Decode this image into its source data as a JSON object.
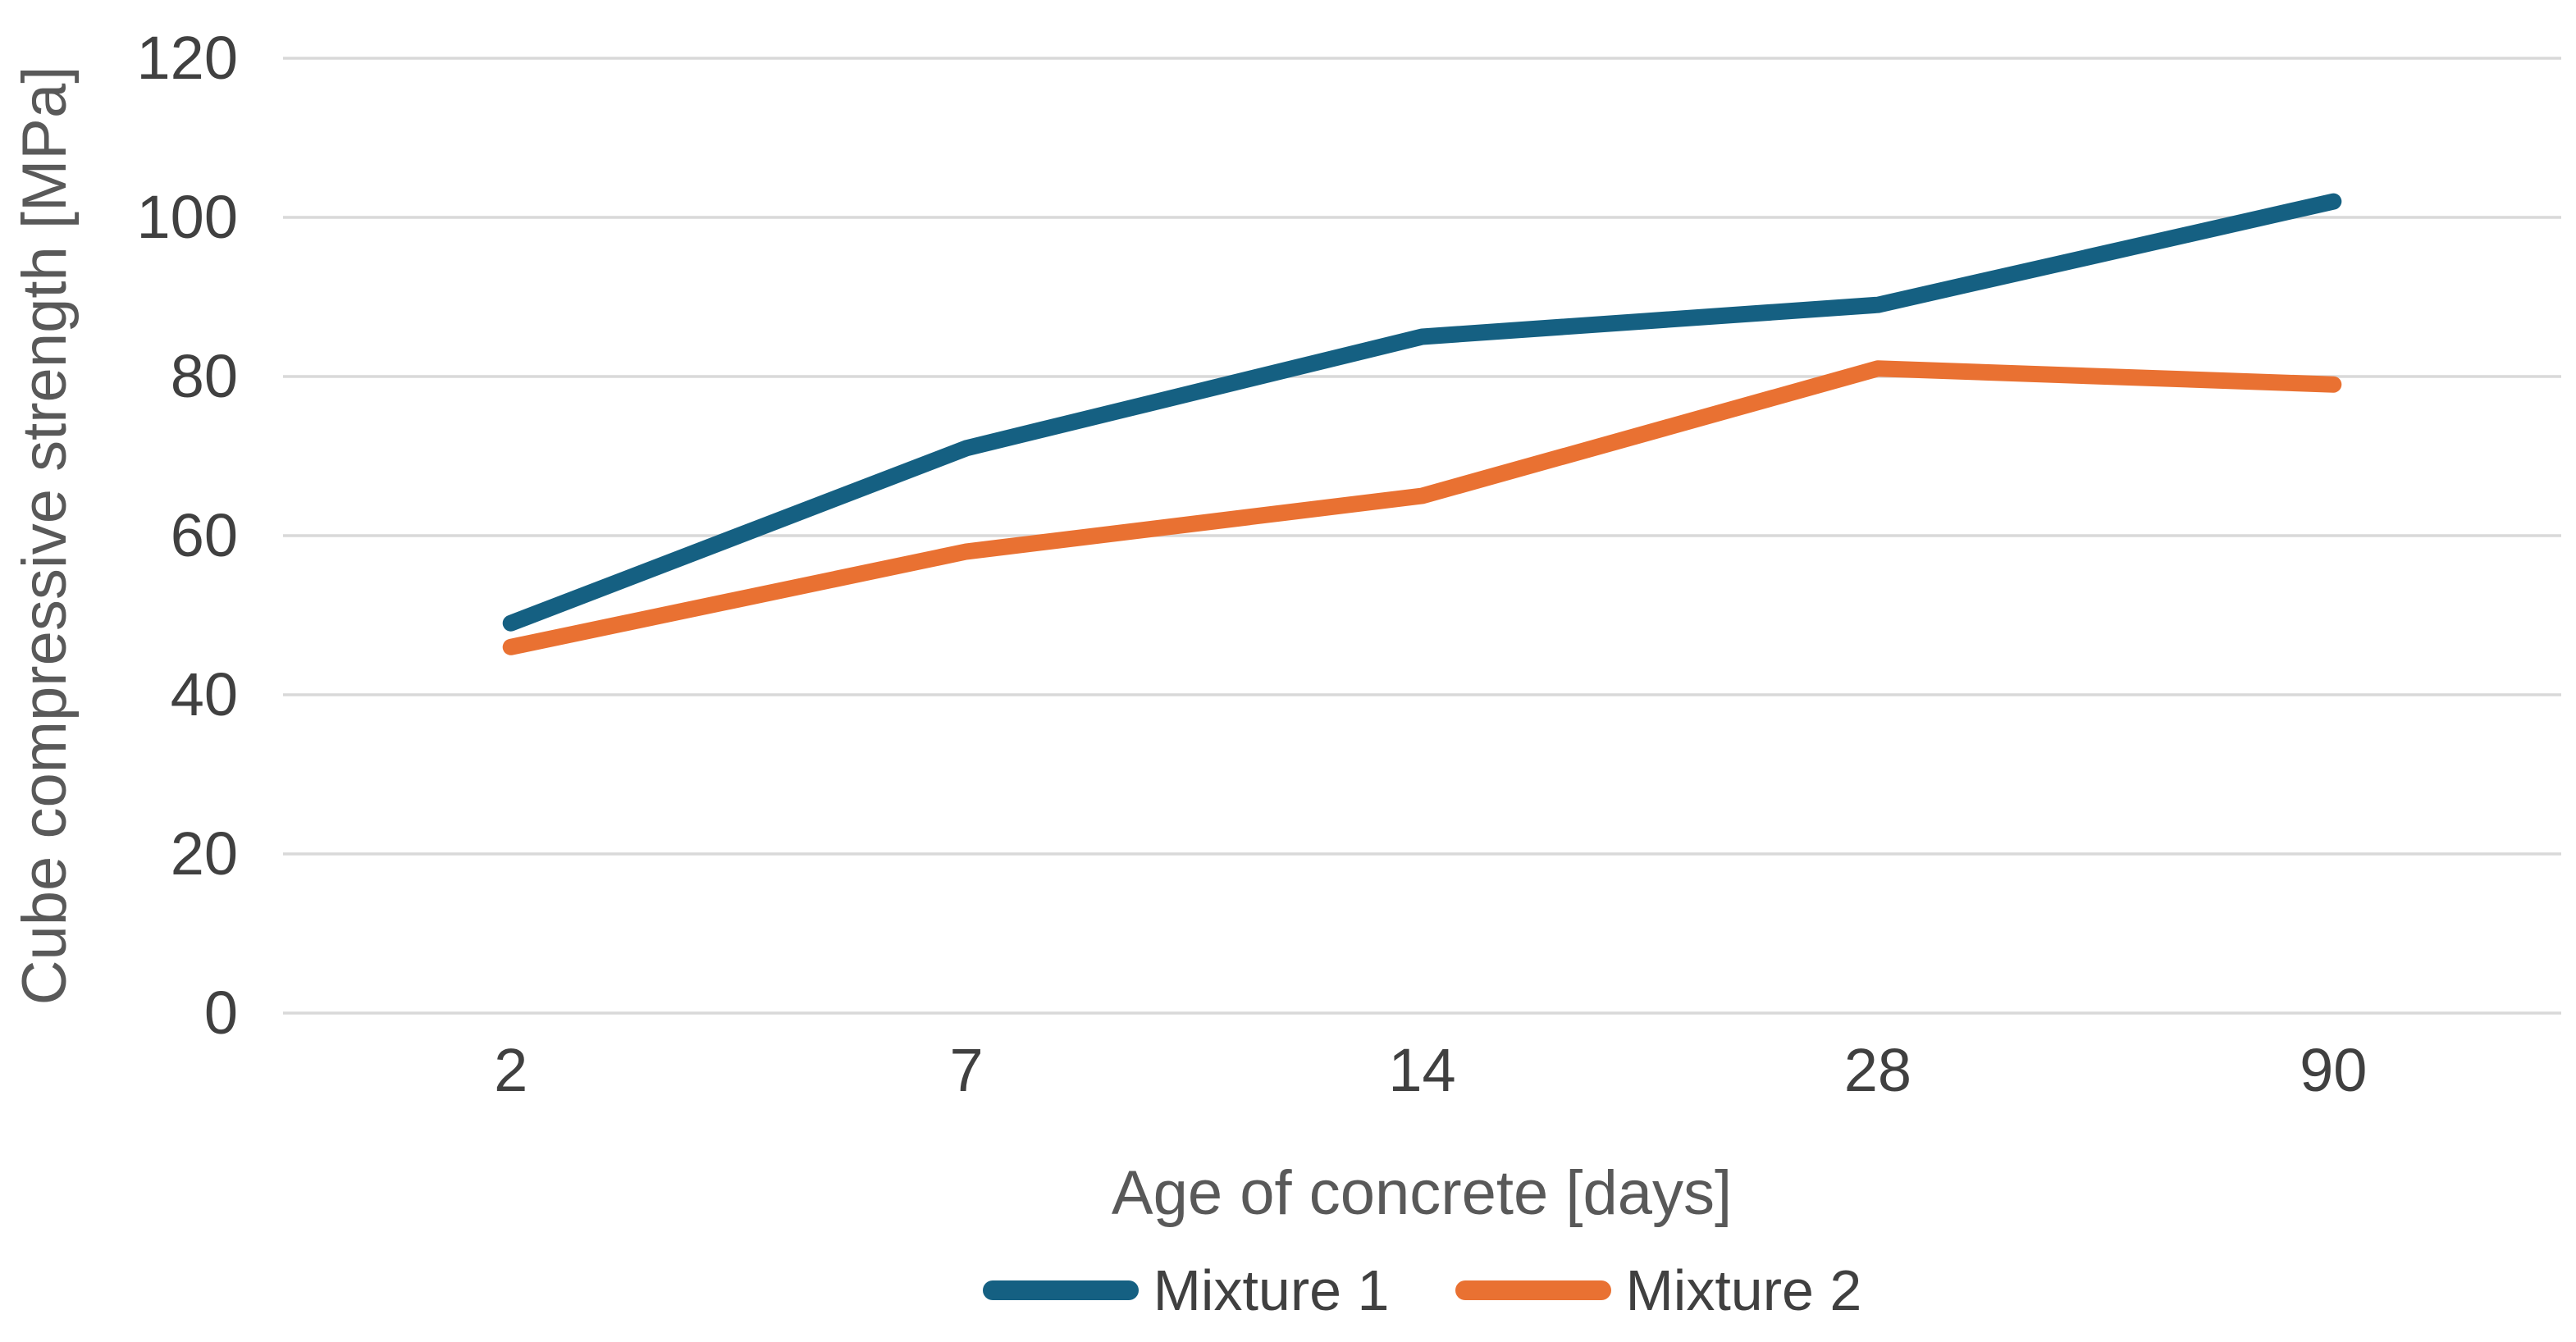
{
  "chart_data": {
    "type": "line",
    "xlabel": "Age of concrete [days]",
    "ylabel": "Cube compressive strength [MPa]",
    "categories": [
      "2",
      "7",
      "14",
      "28",
      "90"
    ],
    "series": [
      {
        "name": "Mixture 1",
        "color": "#156082",
        "values": [
          49,
          71,
          85,
          89,
          102
        ]
      },
      {
        "name": "Mixture 2",
        "color": "#E97132",
        "values": [
          46,
          58,
          65,
          81,
          79
        ]
      }
    ],
    "y_axis": {
      "min": 0,
      "max": 120,
      "step": 20,
      "tick_labels": [
        "0",
        "20",
        "40",
        "60",
        "80",
        "100",
        "120"
      ]
    },
    "grid": true,
    "gridline_color": "#D9D9D9",
    "background_color": "#FFFFFF",
    "legend_position": "bottom",
    "text_colors": {
      "ticks": "#404040",
      "axis_titles": "#595959",
      "legend": "#404040"
    }
  }
}
